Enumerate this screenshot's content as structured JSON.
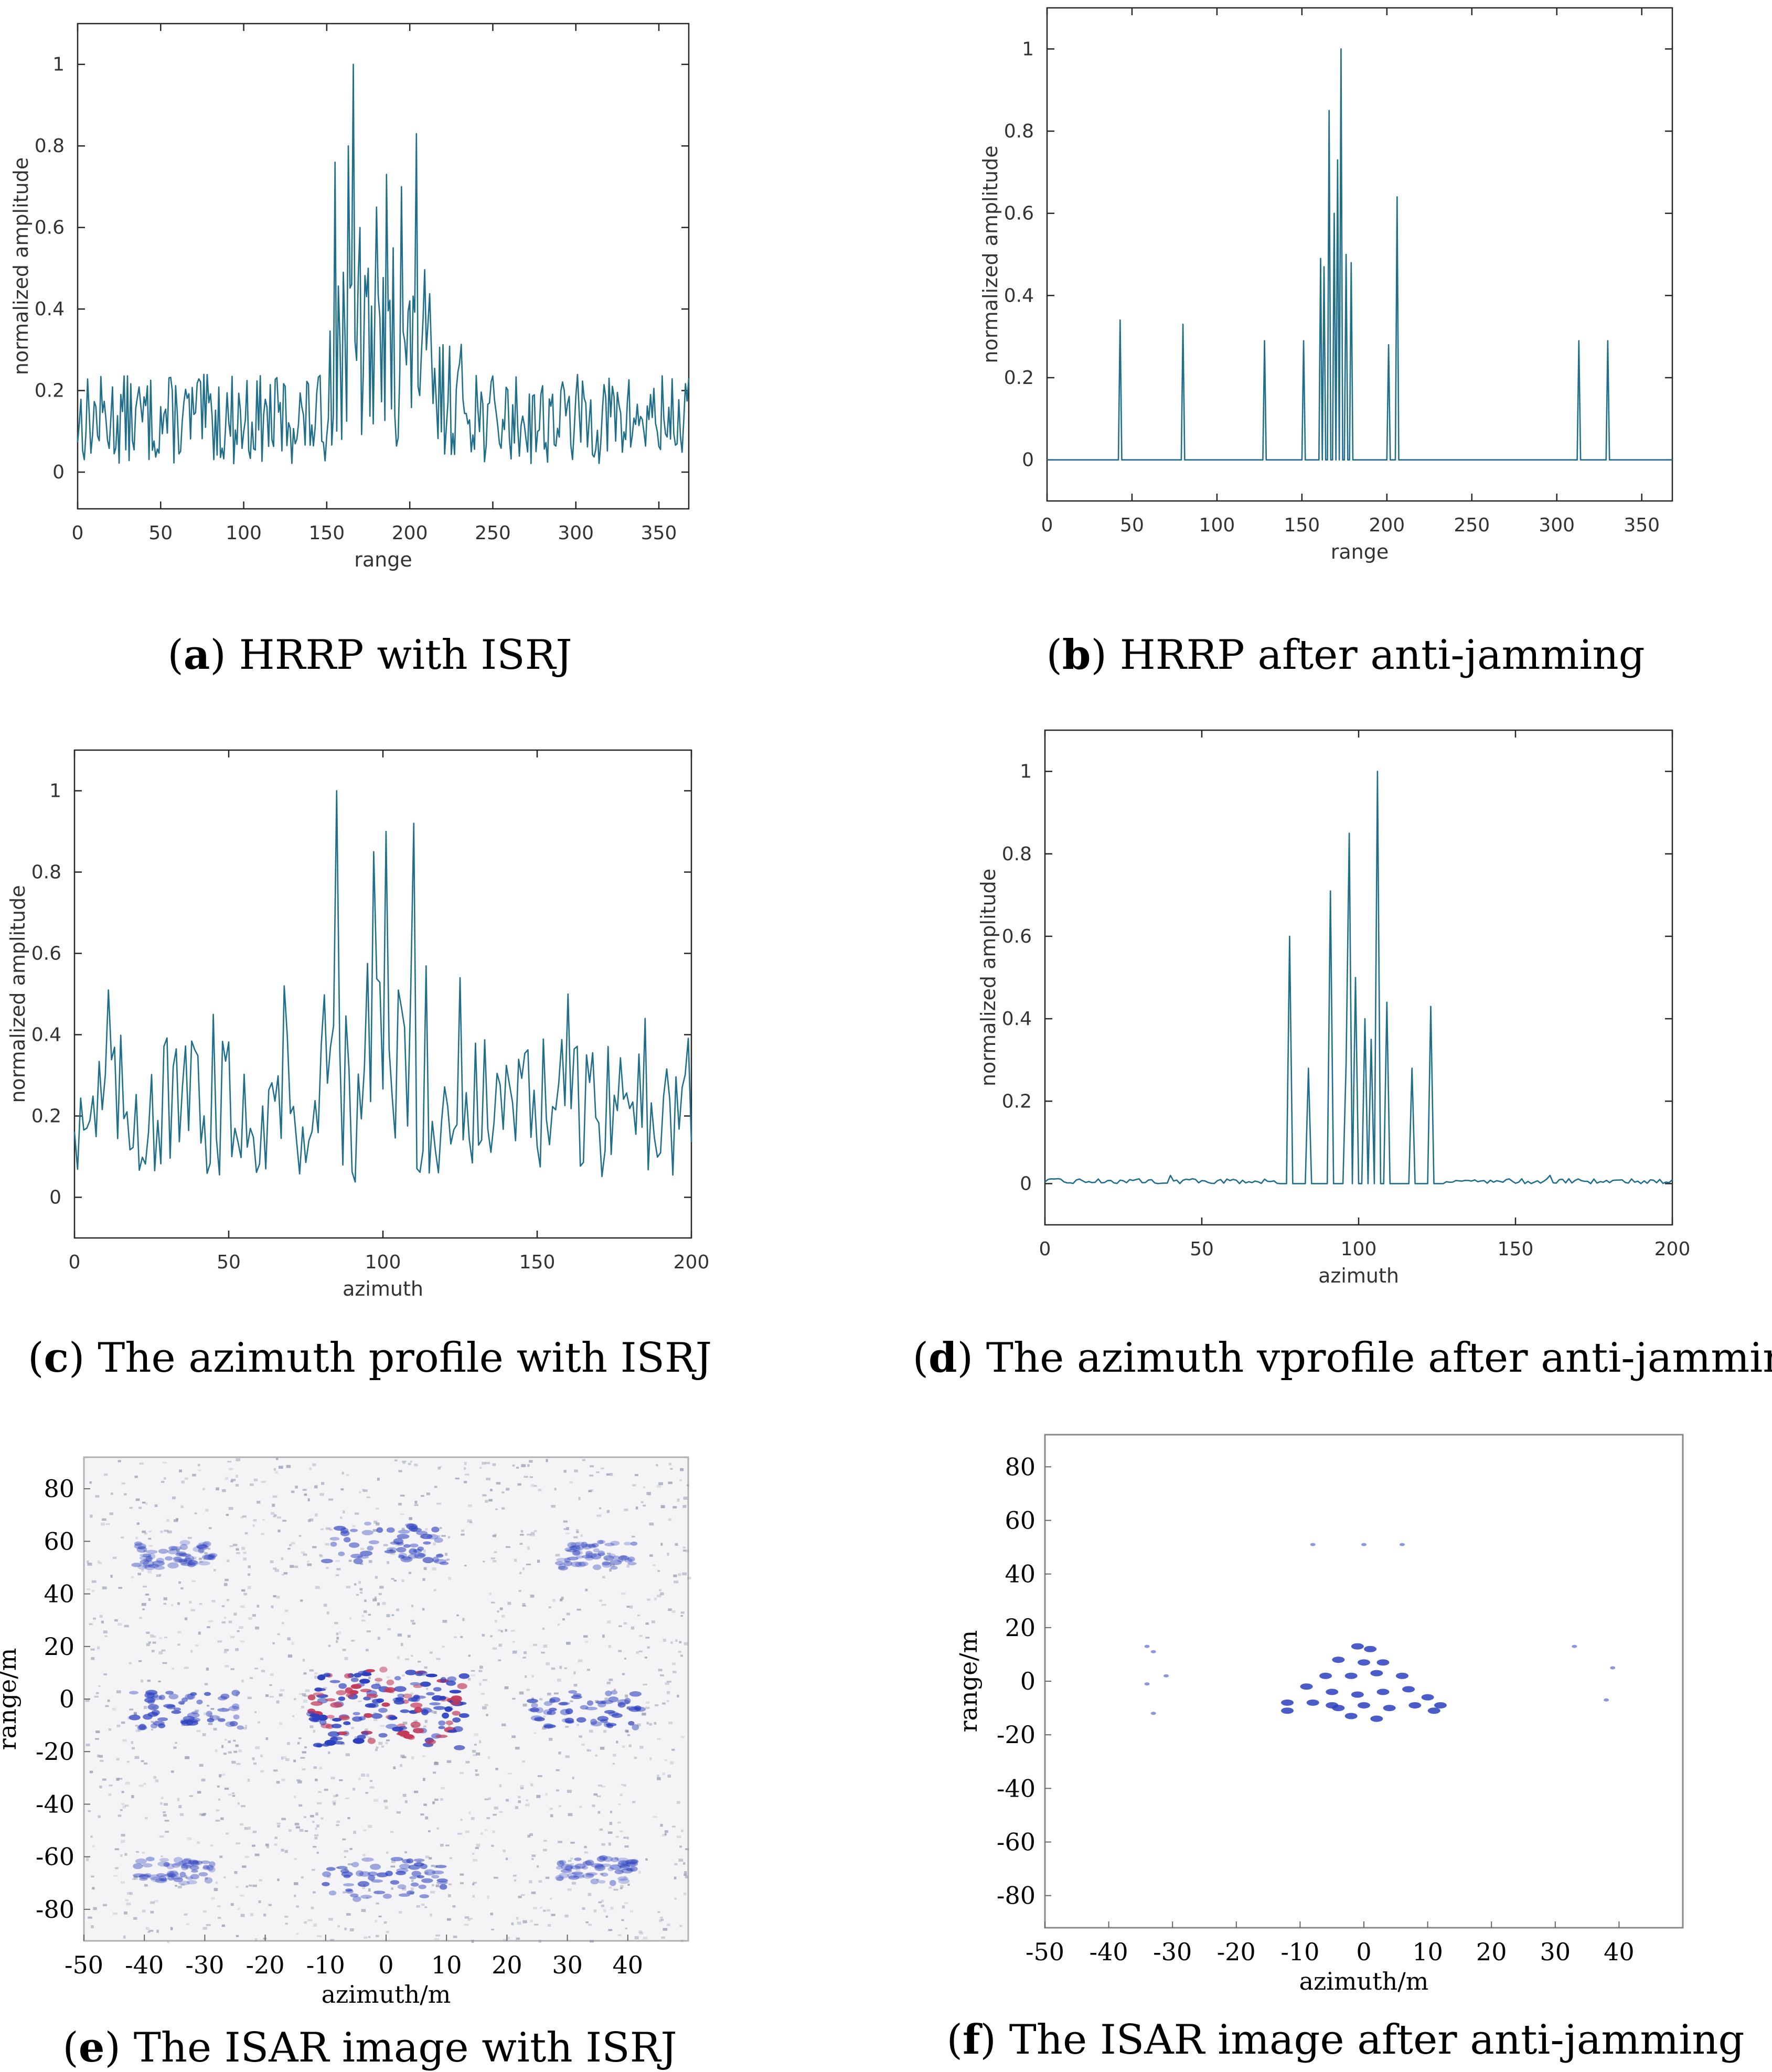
{
  "colors": {
    "line": "#1f6e8c",
    "axis": "#262626",
    "blob": "#2b3fbf",
    "blob_red": "#c23a5a",
    "speck": "#8a8fa8"
  },
  "panels": [
    {
      "id": "a",
      "caption": {
        "tag": "a",
        "text": "HRRP with ISRJ"
      },
      "chart_data": {
        "type": "line",
        "xlabel": "range",
        "ylabel": "normalized amplitude",
        "xlim": [
          0,
          368
        ],
        "ylim": [
          -0.09,
          1.1
        ],
        "xticks": [
          0,
          50,
          100,
          150,
          200,
          250,
          300,
          350
        ],
        "yticks": [
          0,
          0.2,
          0.4,
          0.6,
          0.8,
          1
        ],
        "ytick_labels": [
          "0",
          "0.2",
          "0.4",
          "0.6",
          "0.8",
          "1"
        ],
        "style": "jammed_range",
        "peaks": [
          [
            155,
            0.76
          ],
          [
            160,
            0.49
          ],
          [
            163,
            0.8
          ],
          [
            166,
            1.0
          ],
          [
            170,
            0.6
          ],
          [
            175,
            0.5
          ],
          [
            180,
            0.65
          ],
          [
            186,
            0.73
          ],
          [
            190,
            0.55
          ],
          [
            195,
            0.7
          ],
          [
            200,
            0.42
          ],
          [
            204,
            0.83
          ],
          [
            210,
            0.3
          ]
        ]
      }
    },
    {
      "id": "b",
      "caption": {
        "tag": "b",
        "text": "HRRP after anti-jamming"
      },
      "chart_data": {
        "type": "line",
        "xlabel": "range",
        "ylabel": "normalized amplitude",
        "xlim": [
          0,
          368
        ],
        "ylim": [
          -0.1,
          1.1
        ],
        "xticks": [
          0,
          50,
          100,
          150,
          200,
          250,
          300,
          350
        ],
        "yticks": [
          0,
          0.2,
          0.4,
          0.6,
          0.8,
          1
        ],
        "ytick_labels": [
          "0",
          "0.2",
          "0.4",
          "0.6",
          "0.8",
          "1"
        ],
        "style": "spikes",
        "peaks": [
          [
            43,
            0.34
          ],
          [
            80,
            0.33
          ],
          [
            128,
            0.29
          ],
          [
            151,
            0.29
          ],
          [
            161,
            0.49
          ],
          [
            163,
            0.47
          ],
          [
            166,
            0.85
          ],
          [
            169,
            0.6
          ],
          [
            171,
            0.73
          ],
          [
            173,
            1.0
          ],
          [
            176,
            0.5
          ],
          [
            179,
            0.48
          ],
          [
            201,
            0.28
          ],
          [
            206,
            0.64
          ],
          [
            313,
            0.29
          ],
          [
            330,
            0.29
          ]
        ]
      }
    },
    {
      "id": "c",
      "caption": {
        "tag": "c",
        "text": "The azimuth profile with ISRJ"
      },
      "chart_data": {
        "type": "line",
        "xlabel": "azimuth",
        "ylabel": "normalized amplitude",
        "xlim": [
          0,
          200
        ],
        "ylim": [
          -0.1,
          1.1
        ],
        "xticks": [
          0,
          50,
          100,
          150,
          200
        ],
        "yticks": [
          0,
          0.2,
          0.4,
          0.6,
          0.8,
          1
        ],
        "ytick_labels": [
          "0",
          "0.2",
          "0.4",
          "0.6",
          "0.8",
          "1"
        ],
        "style": "jammed_azimuth",
        "peaks": [
          [
            85,
            1.0
          ],
          [
            97,
            0.85
          ],
          [
            101,
            0.9
          ],
          [
            110,
            0.92
          ],
          [
            68,
            0.52
          ],
          [
            11,
            0.51
          ],
          [
            45,
            0.45
          ],
          [
            125,
            0.54
          ],
          [
            160,
            0.5
          ],
          [
            185,
            0.44
          ]
        ]
      }
    },
    {
      "id": "d",
      "caption": {
        "tag": "d",
        "text": "The azimuth vprofile after anti-jamming"
      },
      "chart_data": {
        "type": "line",
        "xlabel": "azimuth",
        "ylabel": "normalized amplitude",
        "xlim": [
          0,
          200
        ],
        "ylim": [
          -0.1,
          1.1
        ],
        "xticks": [
          0,
          50,
          100,
          150,
          200
        ],
        "yticks": [
          0,
          0.2,
          0.4,
          0.6,
          0.8,
          1
        ],
        "ytick_labels": [
          "0",
          "0.2",
          "0.4",
          "0.6",
          "0.8",
          "1"
        ],
        "style": "spikes",
        "peaks": [
          [
            78,
            0.6
          ],
          [
            84,
            0.28
          ],
          [
            91,
            0.71
          ],
          [
            96,
            0.29
          ],
          [
            97,
            0.85
          ],
          [
            99,
            0.5
          ],
          [
            102,
            0.4
          ],
          [
            104,
            0.35
          ],
          [
            106,
            1.0
          ],
          [
            109,
            0.44
          ],
          [
            117,
            0.28
          ],
          [
            123,
            0.43
          ]
        ]
      }
    },
    {
      "id": "e",
      "caption": {
        "tag": "e",
        "text": "The ISAR image with ISRJ"
      },
      "chart_data": {
        "type": "heatmap",
        "xlabel": "azimuth/m",
        "ylabel": "range/m",
        "xlim": [
          -50,
          50
        ],
        "ylim": [
          -92,
          92
        ],
        "xticks": [
          -50,
          -40,
          -30,
          -20,
          -10,
          0,
          10,
          20,
          30,
          40
        ],
        "yticks": [
          -80,
          -60,
          -40,
          -20,
          0,
          20,
          40,
          60,
          80
        ],
        "style": "jammed_isar"
      }
    },
    {
      "id": "f",
      "caption": {
        "tag": "f",
        "text": "The ISAR image after anti-jamming"
      },
      "chart_data": {
        "type": "heatmap",
        "xlabel": "azimuth/m",
        "ylabel": "range/m",
        "xlim": [
          -50,
          50
        ],
        "ylim": [
          -92,
          92
        ],
        "xticks": [
          -50,
          -40,
          -30,
          -20,
          -10,
          0,
          10,
          20,
          30,
          40
        ],
        "yticks": [
          -80,
          -60,
          -40,
          -20,
          0,
          20,
          40,
          60,
          80
        ],
        "style": "clean_isar"
      }
    }
  ]
}
